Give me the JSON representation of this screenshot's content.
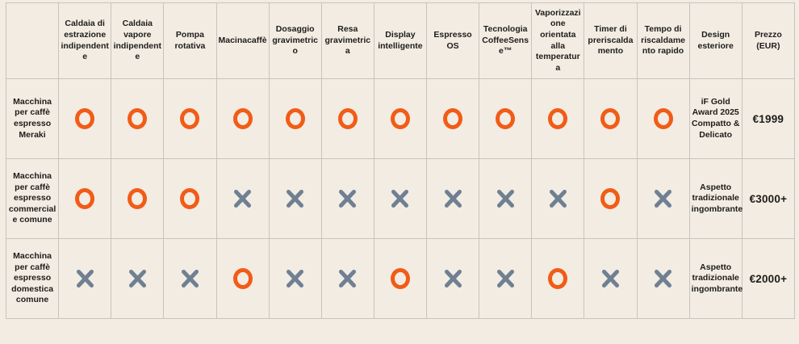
{
  "chart_data": {
    "type": "table",
    "columns": [
      "",
      "Caldaia di estrazione indipendente",
      "Caldaia vapore indipendente",
      "Pompa rotativa",
      "Macinacaffè",
      "Dosaggio gravimetrico",
      "Resa gravimetrica",
      "Display intelligente",
      "Espresso OS",
      "Tecnologia CoffeeSense™",
      "Vaporizzazione orientata alla temperatura",
      "Timer di preriscaldamento",
      "Tempo di riscaldamento rapido",
      "Design esteriore",
      "Prezzo (EUR)"
    ],
    "rows": [
      {
        "label": "Macchina per caffè espresso Meraki",
        "features": [
          "yes",
          "yes",
          "yes",
          "yes",
          "yes",
          "yes",
          "yes",
          "yes",
          "yes",
          "yes",
          "yes",
          "yes"
        ],
        "design": "iF Gold Award 2025 Compatto & Delicato",
        "price": "€1999"
      },
      {
        "label": "Macchina per caffè espresso commerciale comune",
        "features": [
          "yes",
          "yes",
          "yes",
          "no",
          "no",
          "no",
          "no",
          "no",
          "no",
          "no",
          "yes",
          "no"
        ],
        "design": "Aspetto tradizionale ingombrante",
        "price": "€3000+"
      },
      {
        "label": "Macchina per caffè espresso domestica comune",
        "features": [
          "no",
          "no",
          "no",
          "yes",
          "no",
          "no",
          "yes",
          "no",
          "no",
          "yes",
          "no",
          "no"
        ],
        "design": "Aspetto tradizionale ingombrante",
        "price": "€2000+"
      }
    ],
    "symbols": {
      "yes": "circle-icon",
      "no": "cross-icon"
    },
    "colors": {
      "background": "#F2ECE3",
      "grid_line": "#C7C4BE",
      "text": "#1E1D1B",
      "feature_present_orange": "#F15C16",
      "feature_absent_gray": "#6F8092"
    },
    "legend_position": "none",
    "grid": true
  }
}
